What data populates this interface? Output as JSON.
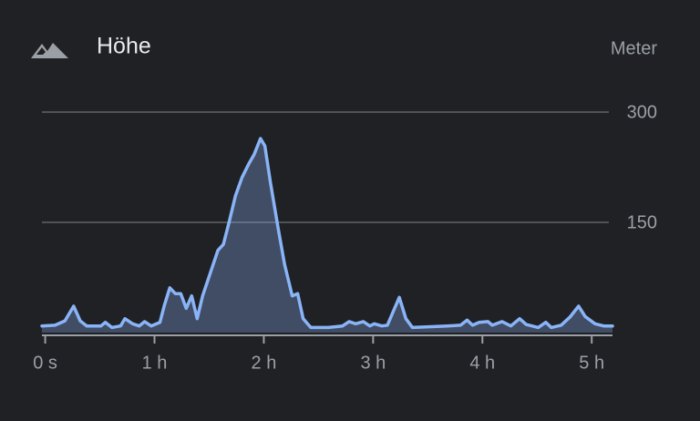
{
  "chart_data": {
    "type": "area",
    "title": "Höhe",
    "y_unit": "Meter",
    "x": [
      -0.03,
      0.09,
      0.18,
      0.26,
      0.32,
      0.38,
      0.51,
      0.55,
      0.61,
      0.69,
      0.73,
      0.8,
      0.86,
      0.91,
      0.97,
      1.05,
      1.09,
      1.14,
      1.19,
      1.24,
      1.29,
      1.34,
      1.39,
      1.44,
      1.51,
      1.58,
      1.63,
      1.68,
      1.74,
      1.8,
      1.86,
      1.91,
      1.97,
      2.01,
      2.06,
      2.13,
      2.19,
      2.26,
      2.31,
      2.36,
      2.43,
      2.59,
      2.72,
      2.78,
      2.84,
      2.91,
      2.97,
      3.01,
      3.08,
      3.13,
      3.19,
      3.24,
      3.3,
      3.36,
      3.68,
      3.8,
      3.86,
      3.91,
      3.97,
      4.05,
      4.09,
      4.18,
      4.26,
      4.34,
      4.4,
      4.51,
      4.58,
      4.63,
      4.72,
      4.8,
      4.88,
      4.94,
      5.03,
      5.11,
      5.19
    ],
    "values": [
      9,
      10,
      16,
      36,
      16,
      9,
      9,
      14,
      7,
      9,
      19,
      12,
      9,
      15,
      9,
      14,
      37,
      61,
      53,
      53,
      33,
      50,
      19,
      50,
      81,
      112,
      120,
      149,
      186,
      211,
      229,
      242,
      264,
      254,
      205,
      143,
      93,
      50,
      53,
      19,
      7,
      7,
      9,
      15,
      12,
      15,
      9,
      12,
      9,
      10,
      31,
      48,
      19,
      7,
      9,
      10,
      17,
      10,
      14,
      15,
      10,
      15,
      9,
      19,
      11,
      7,
      14,
      7,
      10,
      21,
      36,
      22,
      12,
      9,
      9
    ],
    "color": "#8ab4f8",
    "xlim": [
      -0.03,
      5.19
    ],
    "xticks": [
      {
        "value": 0,
        "label": "0 s"
      },
      {
        "value": 1,
        "label": "1 h"
      },
      {
        "value": 2,
        "label": "2 h"
      },
      {
        "value": 3,
        "label": "3 h"
      },
      {
        "value": 4,
        "label": "4 h"
      },
      {
        "value": 5,
        "label": "5 h"
      }
    ],
    "ylim": [
      0,
      300
    ],
    "yticks": [
      150,
      300
    ],
    "grid": true
  }
}
